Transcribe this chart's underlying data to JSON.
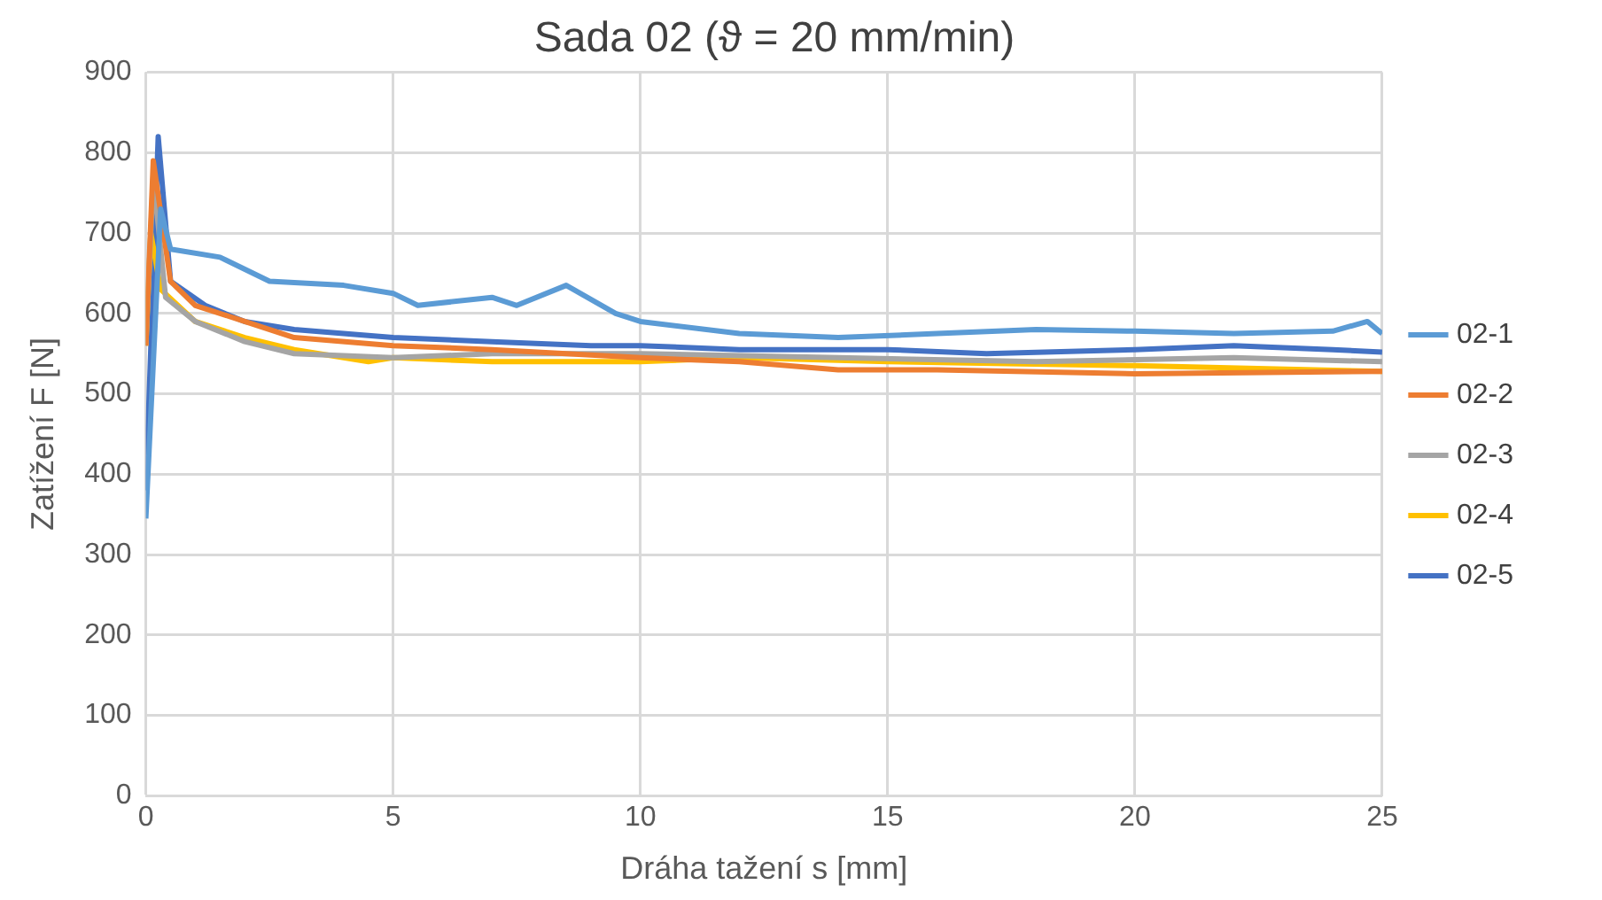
{
  "chart_data": {
    "type": "line",
    "title": "Sada 02 (ϑ = 20 mm/min)",
    "xlabel": "Dráha tažení s [mm]",
    "ylabel": "Zatížení F [N]",
    "xlim": [
      0,
      25
    ],
    "xticks": [
      0,
      5,
      10,
      15,
      20,
      25
    ],
    "ylim": [
      0,
      900
    ],
    "yticks": [
      0,
      100,
      200,
      300,
      400,
      500,
      600,
      700,
      800,
      900
    ],
    "grid": true,
    "legend": "right",
    "marker": "none",
    "line_style": "solid",
    "series": [
      {
        "name": "02-1",
        "color": "#5b9bd5",
        "x": [
          0,
          0.3,
          0.5,
          1.5,
          2.5,
          4,
          5,
          5.5,
          7,
          7.5,
          8.5,
          9.5,
          10,
          12,
          14,
          16,
          18,
          20,
          22,
          24,
          24.7,
          25
        ],
        "values": [
          345,
          730,
          680,
          670,
          640,
          635,
          625,
          610,
          620,
          610,
          635,
          600,
          590,
          575,
          570,
          575,
          580,
          578,
          575,
          578,
          590,
          575
        ]
      },
      {
        "name": "02-2",
        "color": "#ed7d31",
        "x": [
          0,
          0.15,
          0.5,
          1,
          2,
          3,
          5,
          7,
          10,
          12,
          14,
          16,
          20,
          25
        ],
        "values": [
          560,
          790,
          640,
          610,
          590,
          570,
          560,
          555,
          545,
          540,
          530,
          530,
          525,
          528
        ]
      },
      {
        "name": "02-3",
        "color": "#a5a5a5",
        "x": [
          0,
          0.15,
          0.4,
          1,
          2,
          3,
          5,
          7,
          10,
          14,
          18,
          22,
          25
        ],
        "values": [
          560,
          770,
          620,
          590,
          565,
          550,
          545,
          550,
          550,
          545,
          540,
          545,
          540
        ]
      },
      {
        "name": "02-4",
        "color": "#ffc000",
        "x": [
          0,
          0.1,
          0.3,
          1,
          2,
          3,
          4.5,
          5,
          7,
          10,
          12,
          15,
          20,
          25
        ],
        "values": [
          560,
          700,
          630,
          590,
          570,
          555,
          540,
          545,
          540,
          540,
          545,
          540,
          535,
          528
        ]
      },
      {
        "name": "02-5",
        "color": "#4472c4",
        "x": [
          0,
          0.25,
          0.5,
          1.2,
          2,
          3,
          4,
          5,
          7,
          9,
          10,
          12,
          15,
          17,
          20,
          22,
          24,
          25
        ],
        "values": [
          380,
          820,
          640,
          610,
          590,
          580,
          575,
          570,
          565,
          560,
          560,
          555,
          555,
          550,
          555,
          560,
          555,
          552
        ]
      }
    ]
  }
}
